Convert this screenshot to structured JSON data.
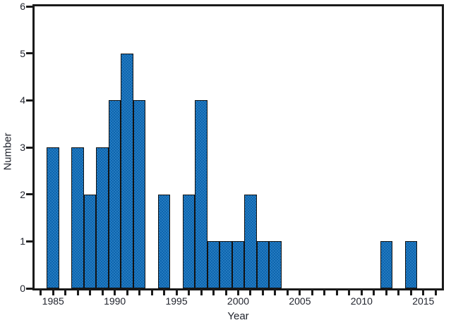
{
  "chart_data": {
    "type": "bar",
    "title": "",
    "xlabel": "Year",
    "ylabel": "Number",
    "xlim": [
      1983.5,
      2016.5
    ],
    "ylim": [
      0,
      6
    ],
    "x_major_ticks": [
      1985,
      1990,
      1995,
      2000,
      2005,
      2010,
      2015
    ],
    "x_minor_tick_every_years": 1,
    "y_ticks": [
      0,
      1,
      2,
      3,
      4,
      5,
      6
    ],
    "bar_width_years": 1,
    "grid": false,
    "legend": false,
    "x": [
      1985,
      1987,
      1988,
      1989,
      1990,
      1991,
      1992,
      1994,
      1996,
      1997,
      1998,
      1999,
      2000,
      2001,
      2002,
      2003,
      2012,
      2014
    ],
    "values": [
      3,
      3,
      2,
      3,
      4,
      5,
      4,
      2,
      2,
      4,
      1,
      1,
      1,
      2,
      1,
      1,
      1,
      1
    ],
    "colors": {
      "bar_fill": "#0d65af",
      "bar_dot": "#4092d1",
      "bar_edge": "#121212",
      "axis": "#1a1a1a",
      "text": "#22252e",
      "background": "#ffffff"
    }
  }
}
